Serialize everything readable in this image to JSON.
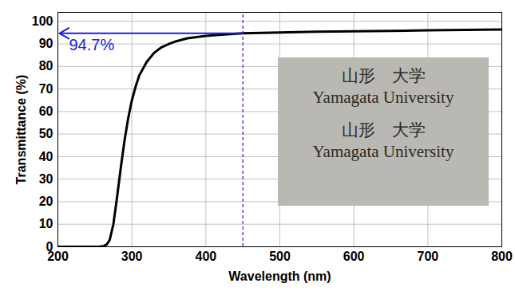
{
  "chart_data": {
    "type": "line",
    "x_label": "Wavelength (nm)",
    "y_label": "Transmittance (%)",
    "x": [
      200,
      220,
      240,
      255,
      262,
      266,
      270,
      275,
      280,
      285,
      290,
      295,
      300,
      305,
      310,
      320,
      330,
      340,
      350,
      360,
      375,
      400,
      425,
      450,
      475,
      500,
      550,
      600,
      650,
      700,
      750,
      800
    ],
    "values": [
      0,
      0,
      0,
      0,
      0.3,
      1,
      3,
      10,
      22,
      35,
      47,
      57,
      65,
      71,
      76,
      82,
      86,
      88.5,
      90,
      91.2,
      92.5,
      93.6,
      94.2,
      94.7,
      94.9,
      95.1,
      95.4,
      95.6,
      95.8,
      96,
      96.2,
      96.4
    ],
    "color": "#000000",
    "xlim": [
      200,
      800
    ],
    "ylim": [
      0,
      104
    ],
    "xticks": [
      200,
      300,
      400,
      500,
      600,
      700,
      800
    ],
    "yticks": [
      0,
      10,
      20,
      30,
      40,
      50,
      60,
      70,
      80,
      90,
      100
    ],
    "grid": true,
    "annotations": [
      {
        "x": 450,
        "y": 94.7,
        "label": "94.7%",
        "color": "#2020e0"
      }
    ],
    "inset_text": [
      "山形　大学",
      "Yamagata University",
      "山形　大学",
      "Yamagata University"
    ]
  }
}
